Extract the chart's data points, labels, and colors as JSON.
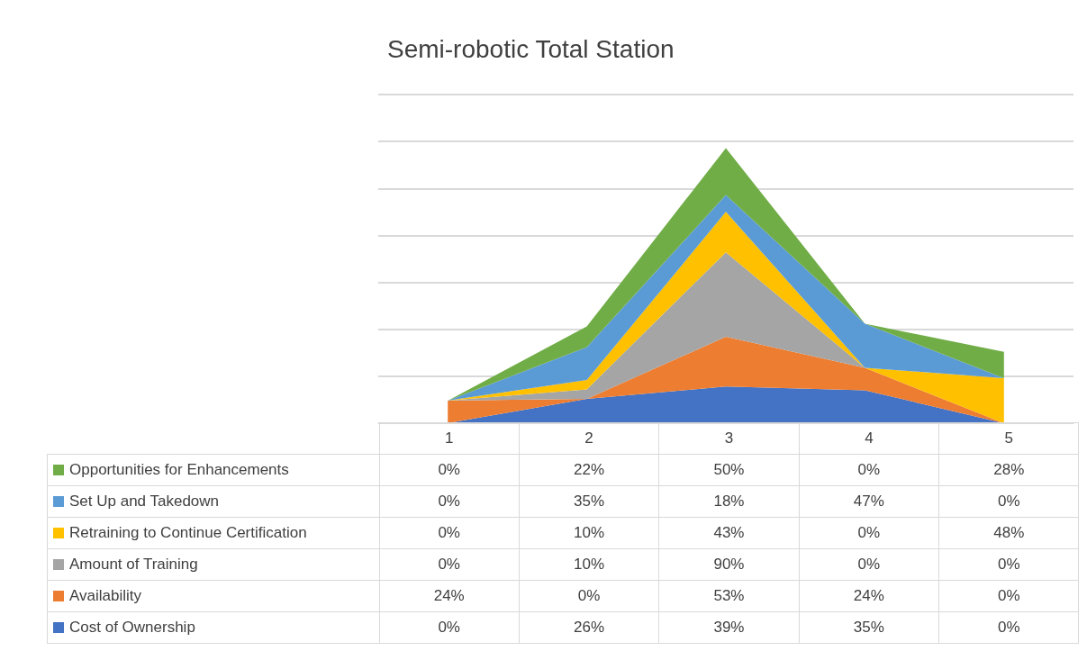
{
  "chart_data": {
    "type": "area",
    "title": "Semi-robotic Total Station",
    "categories": [
      "1",
      "2",
      "3",
      "4",
      "5"
    ],
    "stacked": true,
    "ylim": [
      0,
      350
    ],
    "yticks": [
      {
        "value": 0,
        "label": null
      },
      {
        "value": 50,
        "label": null
      },
      {
        "value": 100,
        "label": null
      },
      {
        "value": 150,
        "label": null
      },
      {
        "value": 200,
        "label": null
      },
      {
        "value": 250,
        "label": null
      },
      {
        "value": 300,
        "label": null
      },
      {
        "value": 350,
        "label": null
      }
    ],
    "grid": "y",
    "legend": "bottom",
    "tick_labels": "x",
    "series": [
      {
        "name": "Cost of Ownership",
        "color": "#4472c4",
        "values": [
          0,
          26,
          39,
          35,
          0
        ],
        "value_labels": [
          "0%",
          "26%",
          "39%",
          "35%",
          "0%"
        ]
      },
      {
        "name": "Availability",
        "color": "#ed7d31",
        "values": [
          24,
          0,
          53,
          24,
          0
        ],
        "value_labels": [
          "24%",
          "0%",
          "53%",
          "24%",
          "0%"
        ]
      },
      {
        "name": "Amount of Training",
        "color": "#a5a5a5",
        "values": [
          0,
          10,
          90,
          0,
          0
        ],
        "value_labels": [
          "0%",
          "10%",
          "90%",
          "0%",
          "0%"
        ]
      },
      {
        "name": "Retraining to Continue Certification",
        "color": "#ffc000",
        "values": [
          0,
          10,
          43,
          0,
          48
        ],
        "value_labels": [
          "0%",
          "10%",
          "43%",
          "0%",
          "48%"
        ]
      },
      {
        "name": "Set Up and Takedown",
        "color": "#5b9bd5",
        "values": [
          0,
          35,
          18,
          47,
          0
        ],
        "value_labels": [
          "0%",
          "35%",
          "18%",
          "47%",
          "0%"
        ]
      },
      {
        "name": "Opportunities for Enhancements",
        "color": "#70ad47",
        "values": [
          0,
          22,
          50,
          0,
          28
        ],
        "value_labels": [
          "0%",
          "22%",
          "50%",
          "0%",
          "28%"
        ]
      }
    ]
  }
}
